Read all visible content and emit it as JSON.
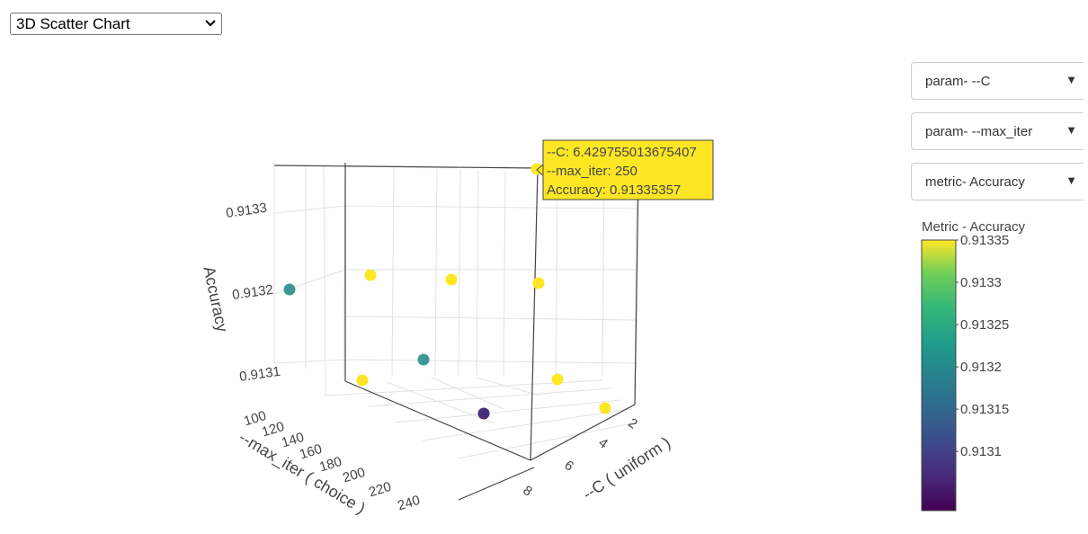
{
  "chart_type_select": {
    "value": "3D Scatter Chart"
  },
  "dropdowns": [
    {
      "label": "param- --C"
    },
    {
      "label": "param- --max_iter"
    },
    {
      "label": "metric- Accuracy"
    }
  ],
  "chart_data": {
    "type": "scatter",
    "x_axis": {
      "label": "--C ( uniform )",
      "ticks": [
        "2",
        "4",
        "6",
        "8"
      ]
    },
    "y_axis": {
      "label": "--max_iter ( choice )",
      "ticks": [
        "100",
        "120",
        "140",
        "160",
        "180",
        "200",
        "220",
        "240"
      ]
    },
    "z_axis": {
      "label": "Accuracy",
      "ticks": [
        "0.9131",
        "0.9132",
        "0.9133"
      ]
    },
    "colorbar": {
      "title": "Metric - Accuracy",
      "ticks": [
        "0.91335",
        "0.9133",
        "0.91325",
        "0.9132",
        "0.91315",
        "0.9131"
      ],
      "colorscale": "viridis",
      "range": [
        0.91303,
        0.91335
      ]
    },
    "points": [
      {
        "accuracy": 0.91335,
        "color": "#fde725"
      },
      {
        "accuracy": 0.91335,
        "color": "#fde725"
      },
      {
        "accuracy": 0.91335,
        "color": "#fde725"
      },
      {
        "accuracy": 0.91335,
        "color": "#fde725"
      },
      {
        "accuracy": 0.91335,
        "color": "#fde725"
      },
      {
        "accuracy": 0.91335,
        "color": "#fde725"
      },
      {
        "accuracy": 0.91335,
        "color": "#fde725"
      },
      {
        "accuracy": 0.91319,
        "color": "#3b9a97"
      },
      {
        "accuracy": 0.91319,
        "color": "#3b9a97"
      },
      {
        "accuracy": 0.91304,
        "color": "#472d7b"
      }
    ],
    "hover_label": {
      "lines": [
        "--C: 6.429755013675407",
        "--max_iter: 250",
        "Accuracy: 0.91335357"
      ],
      "background": "#fde725"
    }
  }
}
